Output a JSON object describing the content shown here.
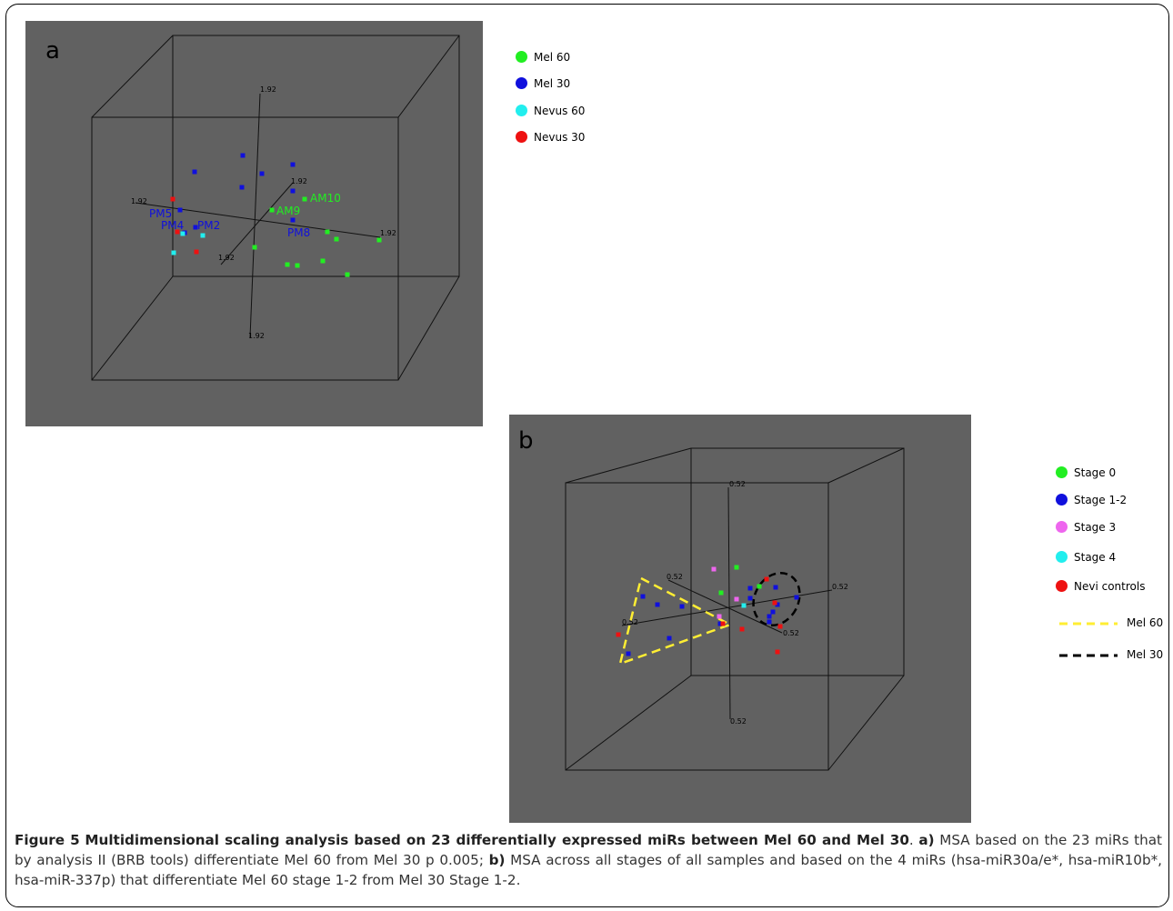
{
  "panels": [
    {
      "letter": "a",
      "tick_label": "1.92",
      "chart_data": {
        "type": "scatter",
        "subtype": "3d-mds",
        "axis_range": [
          -1.92,
          1.92
        ],
        "legend": [
          "Mel 60",
          "Mel 30",
          "Nevus 60",
          "Nevus 30"
        ],
        "colors": {
          "Mel 60": "#22ee22",
          "Mel 30": "#1010dd",
          "Nevus 60": "#22eeee",
          "Nevus 30": "#ee1111"
        },
        "annotations": [
          {
            "text": "AM10",
            "group": "Mel 60"
          },
          {
            "text": "AM9",
            "group": "Mel 60"
          },
          {
            "text": "PM5",
            "group": "Mel 30"
          },
          {
            "text": "PM4",
            "group": "Mel 30"
          },
          {
            "text": "PM2",
            "group": "Mel 30"
          },
          {
            "text": "PM8",
            "group": "Mel 30"
          }
        ],
        "series": [
          {
            "name": "Mel 60",
            "count": 11
          },
          {
            "name": "Mel 30",
            "count": 13
          },
          {
            "name": "Nevus 60",
            "count": 3
          },
          {
            "name": "Nevus 30",
            "count": 3
          }
        ]
      }
    },
    {
      "letter": "b",
      "tick_label": "0.52",
      "chart_data": {
        "type": "scatter",
        "subtype": "3d-mds",
        "axis_range": [
          -0.52,
          0.52
        ],
        "legend": [
          "Stage 0",
          "Stage 1-2",
          "Stage 3",
          "Stage 4",
          "Nevi controls"
        ],
        "line_legend": [
          "Mel 60",
          "Mel 30"
        ],
        "colors": {
          "Stage 0": "#22ee22",
          "Stage 1-2": "#1010dd",
          "Stage 3": "#ee66ee",
          "Stage 4": "#22eeee",
          "Nevi controls": "#ee1111",
          "Mel 60": "#ffee33",
          "Mel 30": "#000000"
        },
        "series": [
          {
            "name": "Stage 0",
            "count": 3
          },
          {
            "name": "Stage 1-2",
            "count": 14
          },
          {
            "name": "Stage 3",
            "count": 3
          },
          {
            "name": "Stage 4",
            "count": 1
          },
          {
            "name": "Nevi controls",
            "count": 7
          }
        ]
      }
    }
  ],
  "caption": {
    "figure_label": "Figure 5",
    "title": "Multidimensional scaling analysis based on 23 differentially expressed miRs between Mel 60 and Mel 30",
    "part_a_label": "a)",
    "part_a_text": "MSA based on the 23 miRs that by analysis II (BRB tools) differentiate Mel 60 from Mel 30 p 0.005;",
    "part_b_label": "b)",
    "part_b_text": "MSA across all stages of all samples and based on the 4 miRs (hsa-miR30a/e*, hsa-miR10b*, hsa-miR-337p) that differentiate Mel 60 stage 1-2 from Mel 30 Stage 1-2."
  }
}
